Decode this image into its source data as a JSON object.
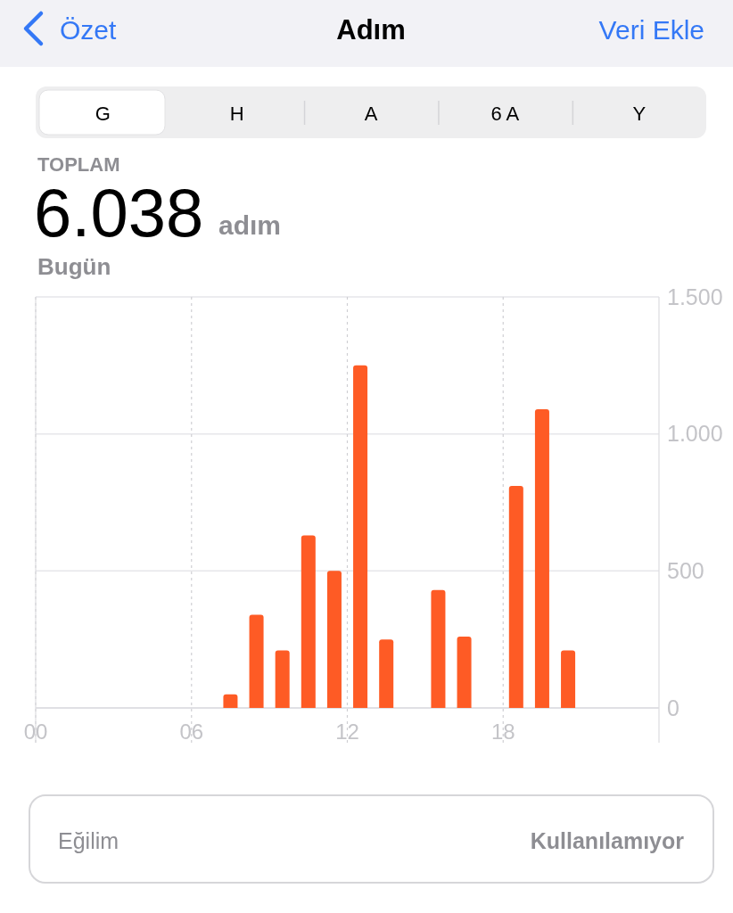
{
  "chart_data": {
    "type": "bar",
    "title": "Adım",
    "x": [
      7.5,
      8.5,
      9.5,
      10.5,
      11.5,
      12.5,
      13.5,
      15.5,
      16.5,
      18.5,
      19.5,
      20.5
    ],
    "values": [
      50,
      340,
      210,
      630,
      500,
      1250,
      250,
      430,
      260,
      810,
      1090,
      210
    ],
    "color": "#fe5b25",
    "xlim": [
      0,
      24
    ],
    "xticks": [
      {
        "value": 0,
        "label": "00"
      },
      {
        "value": 6,
        "label": "06"
      },
      {
        "value": 12,
        "label": "12"
      },
      {
        "value": 18,
        "label": "18"
      }
    ],
    "ylim": [
      0,
      1500
    ],
    "yticks": [
      0,
      500,
      {
        "value": 1000,
        "label": "1.000"
      },
      {
        "value": 1500,
        "label": "1.500"
      }
    ],
    "grid": true,
    "annotations": [
      "Özet",
      "Veri Ekle",
      "G",
      "H",
      "A",
      "6 A",
      "Y",
      "TOPLAM",
      "6.038",
      "adım",
      "Bugün",
      "Eğilim",
      "Kullanılamıyor"
    ]
  }
}
